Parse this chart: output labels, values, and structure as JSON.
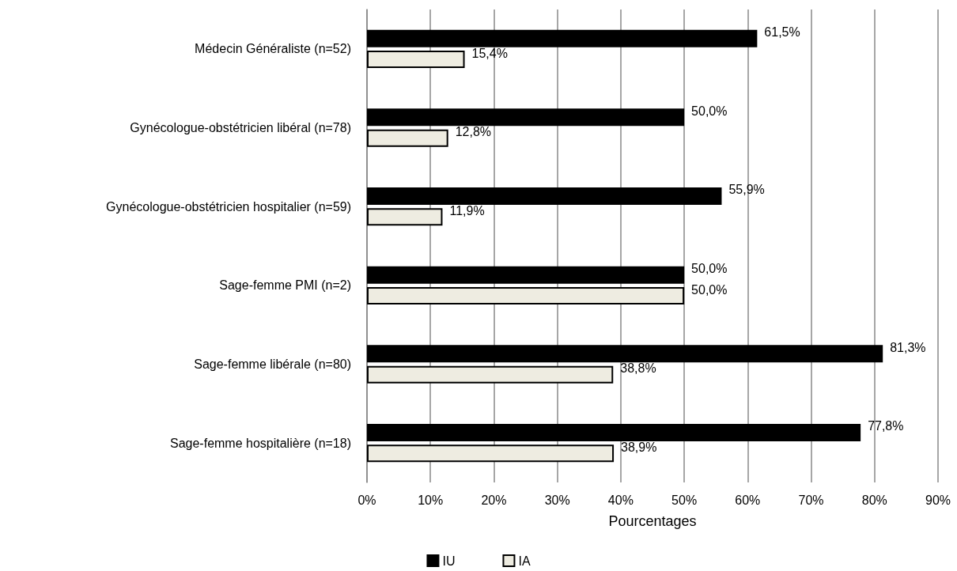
{
  "chart_data": {
    "type": "bar",
    "orientation": "horizontal",
    "xlabel": "Pourcentages",
    "categories": [
      "Médecin Généraliste (n=52)",
      "Gynécologue-obstétricien libéral (n=78)",
      "Gynécologue-obstétricien hospitalier (n=59)",
      "Sage-femme PMI (n=2)",
      "Sage-femme libérale (n=80)",
      "Sage-femme hospitalière (n=18)"
    ],
    "series": [
      {
        "name": "IU",
        "color": "#000000",
        "values": [
          61.5,
          50.0,
          55.9,
          50.0,
          81.3,
          77.8
        ],
        "value_labels": [
          "61,5%",
          "50,0%",
          "55,9%",
          "50,0%",
          "81,3%",
          "77,8%"
        ]
      },
      {
        "name": "IA",
        "color": "#eeece1",
        "values": [
          15.4,
          12.8,
          11.9,
          50.0,
          38.8,
          38.9
        ],
        "value_labels": [
          "15,4%",
          "12,8%",
          "11,9%",
          "50,0%",
          "38,8%",
          "38,9%"
        ]
      }
    ],
    "xlim": [
      0,
      90
    ],
    "xticks": [
      {
        "value": 0,
        "label": "0%"
      },
      {
        "value": 10,
        "label": "10%"
      },
      {
        "value": 20,
        "label": "20%"
      },
      {
        "value": 30,
        "label": "30%"
      },
      {
        "value": 40,
        "label": "40%"
      },
      {
        "value": 50,
        "label": "50%"
      },
      {
        "value": 60,
        "label": "60%"
      },
      {
        "value": 70,
        "label": "70%"
      },
      {
        "value": 80,
        "label": "80%"
      },
      {
        "value": 90,
        "label": "90%"
      }
    ],
    "grid": "x",
    "legend": "bottom"
  }
}
